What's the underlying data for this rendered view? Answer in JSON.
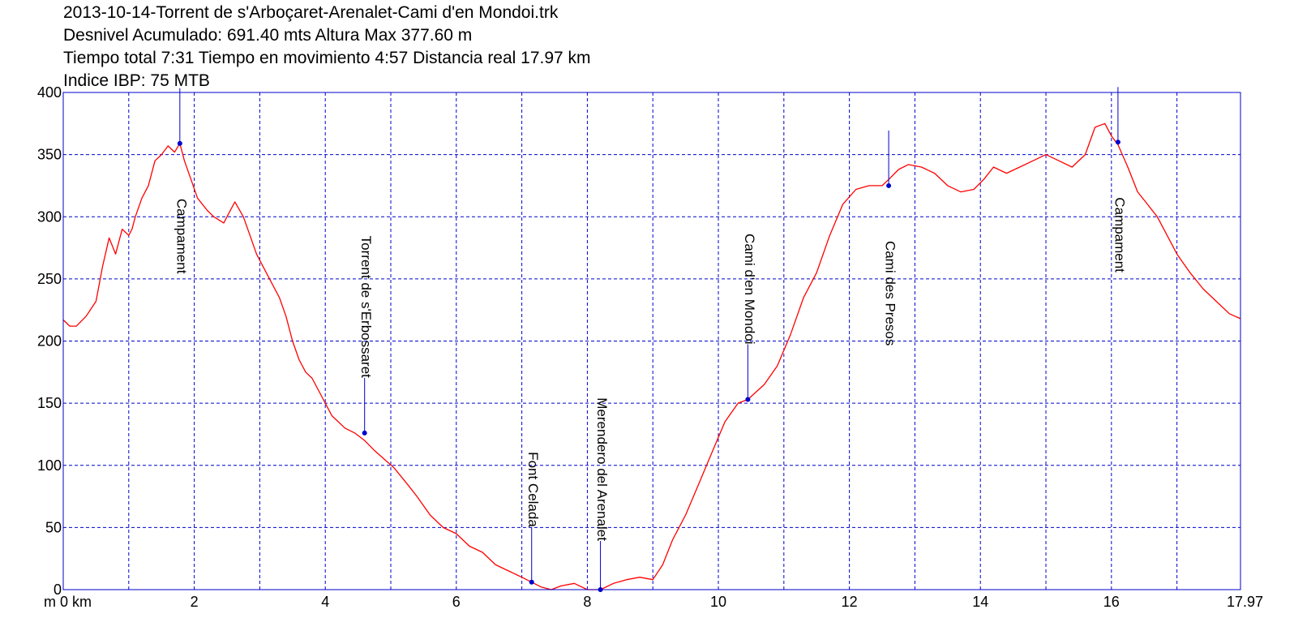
{
  "header": {
    "line1": "2013-10-14-Torrent de s'Arboçaret-Arenalet-Cami d'en Mondoi.trk",
    "line2": "Desnivel Acumulado: 691.40 mts  Altura Max 377.60 m",
    "line3": "Tiempo total 7:31 Tiempo en movimiento 4:57 Distancia real 17.97 km",
    "line4": "Indice IBP: 75 MTB"
  },
  "colors": {
    "profile": "#ff0000",
    "grid": "#0000cc",
    "frame": "#0000cc",
    "waypoint": "#0000cc"
  },
  "chart_data": {
    "type": "line",
    "xlabel": "km",
    "ylabel": "m",
    "xlim": [
      0,
      17.97
    ],
    "ylim": [
      0,
      400
    ],
    "grid": true,
    "y_ticks": [
      "0",
      "50",
      "100",
      "150",
      "200",
      "250",
      "300",
      "350",
      "400"
    ],
    "y_tick_values": [
      0,
      50,
      100,
      150,
      200,
      250,
      300,
      350,
      400
    ],
    "x_ticks": [
      "m 0 km",
      "2",
      "4",
      "6",
      "8",
      "10",
      "12",
      "14",
      "16",
      "17.97"
    ],
    "x_tick_values": [
      0,
      2,
      4,
      6,
      8,
      10,
      12,
      14,
      16,
      17.97
    ],
    "x_minor_gridlines": [
      1,
      3,
      5,
      7,
      9,
      11,
      13,
      15,
      17
    ],
    "series": [
      {
        "x": [
          0,
          0.1,
          0.2,
          0.35,
          0.5,
          0.6,
          0.7,
          0.8,
          0.9,
          1.0,
          1.05,
          1.1,
          1.2,
          1.3,
          1.4,
          1.5,
          1.6,
          1.7,
          1.78,
          1.85,
          1.95,
          2.05,
          2.2,
          2.3,
          2.45,
          2.55,
          2.62,
          2.75,
          2.85,
          2.95,
          3.05,
          3.15,
          3.3,
          3.4,
          3.5,
          3.6,
          3.7,
          3.8,
          3.95,
          4.1,
          4.3,
          4.45,
          4.6,
          4.75,
          4.9,
          5.05,
          5.25,
          5.4,
          5.6,
          5.8,
          6.0,
          6.2,
          6.4,
          6.6,
          6.8,
          7.0,
          7.15,
          7.3,
          7.45,
          7.6,
          7.8,
          8.0,
          8.2,
          8.4,
          8.6,
          8.8,
          9.0,
          9.15,
          9.3,
          9.5,
          9.7,
          9.9,
          10.1,
          10.3,
          10.45,
          10.7,
          10.9,
          11.1,
          11.3,
          11.5,
          11.7,
          11.9,
          12.1,
          12.3,
          12.5,
          12.6,
          12.75,
          12.9,
          13.1,
          13.3,
          13.5,
          13.7,
          13.9,
          14.05,
          14.2,
          14.4,
          14.6,
          14.8,
          15.0,
          15.2,
          15.4,
          15.6,
          15.75,
          15.9,
          16.0,
          16.1,
          16.25,
          16.4,
          16.55,
          16.7,
          16.85,
          17.0,
          17.2,
          17.4,
          17.6,
          17.8,
          17.97
        ],
        "y": [
          217,
          212,
          212,
          220,
          232,
          260,
          283,
          270,
          290,
          285,
          290,
          300,
          315,
          325,
          345,
          350,
          357,
          352,
          359,
          345,
          330,
          315,
          305,
          300,
          295,
          305,
          312,
          300,
          285,
          270,
          260,
          250,
          235,
          220,
          200,
          185,
          175,
          170,
          155,
          140,
          130,
          126,
          120,
          112,
          105,
          98,
          85,
          75,
          60,
          50,
          45,
          35,
          30,
          20,
          15,
          10,
          6,
          2,
          0,
          3,
          5,
          0,
          0,
          5,
          8,
          10,
          8,
          20,
          40,
          60,
          85,
          110,
          135,
          150,
          153,
          165,
          180,
          205,
          235,
          255,
          285,
          310,
          322,
          325,
          325,
          330,
          338,
          342,
          340,
          335,
          325,
          320,
          322,
          330,
          340,
          335,
          340,
          345,
          350,
          345,
          340,
          350,
          372,
          375,
          365,
          358,
          340,
          320,
          310,
          300,
          285,
          270,
          255,
          242,
          232,
          222,
          218
        ]
      }
    ],
    "waypoints": [
      {
        "name": "Campament",
        "x": 1.78,
        "y": 359
      },
      {
        "name": "Torrent de s'Erbossaret",
        "x": 4.6,
        "y": 126
      },
      {
        "name": "Font Celada",
        "x": 7.15,
        "y": 6
      },
      {
        "name": "Merendero del Arenalet",
        "x": 8.2,
        "y": 0
      },
      {
        "name": "Cami d'en Mondoi",
        "x": 10.45,
        "y": 153
      },
      {
        "name": "Cami des Presos",
        "x": 12.6,
        "y": 325
      },
      {
        "name": "Campament",
        "x": 16.1,
        "y": 360
      }
    ]
  }
}
